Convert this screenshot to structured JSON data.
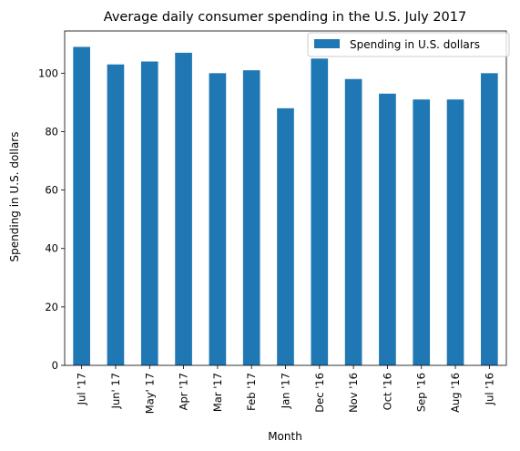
{
  "chart_data": {
    "type": "bar",
    "title": "Average daily consumer spending in the U.S. July 2017",
    "xlabel": "Month",
    "ylabel": "Spending in U.S. dollars",
    "categories": [
      "Jul '17",
      "Jun' 17",
      "May' 17",
      "Apr '17",
      "Mar '17",
      "Feb '17",
      "Jan '17",
      "Dec '16",
      "Nov '16",
      "Oct '16",
      "Sep '16",
      "Aug '16",
      "Jul '16"
    ],
    "series": [
      {
        "name": "Spending in U.S. dollars",
        "color": "#1f77b4",
        "values": [
          109,
          103,
          104,
          107,
          100,
          101,
          88,
          105,
          98,
          93,
          91,
          91,
          100
        ]
      }
    ],
    "ylim": [
      0,
      114.45
    ],
    "yticks": [
      0,
      20,
      40,
      60,
      80,
      100
    ],
    "grid": false,
    "legend_position": "top-right"
  }
}
